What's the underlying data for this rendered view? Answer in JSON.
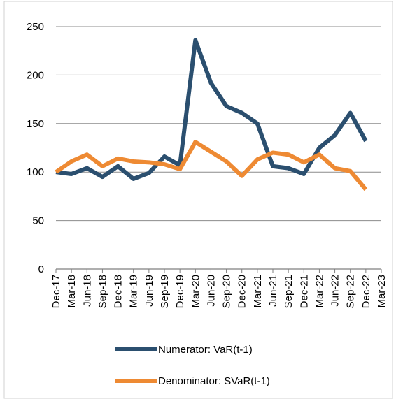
{
  "chart_data": {
    "type": "line",
    "categories": [
      "Dec-17",
      "Mar-18",
      "Jun-18",
      "Sep-18",
      "Dec-18",
      "Mar-19",
      "Jun-19",
      "Sep-19",
      "Dec-19",
      "Mar-20",
      "Jun-20",
      "Sep-20",
      "Dec-20",
      "Mar-21",
      "Jun-21",
      "Sep-21",
      "Dec-21",
      "Mar-22",
      "Jun-22",
      "Sep-22",
      "Dec-22",
      "Mar-23"
    ],
    "series": [
      {
        "name": "Numerator: VaR(t-1)",
        "color": "#2b4f6f",
        "values": [
          100,
          98,
          104,
          95,
          106,
          93,
          99,
          116,
          107,
          236,
          192,
          168,
          161,
          150,
          106,
          104,
          98,
          125,
          138,
          161,
          132,
          null
        ]
      },
      {
        "name": "Denominator: SVaR(t-1)",
        "color": "#ee8a33",
        "values": [
          100,
          111,
          118,
          106,
          114,
          111,
          110,
          108,
          103,
          131,
          121,
          111,
          96,
          113,
          120,
          118,
          110,
          118,
          104,
          101,
          82,
          null
        ]
      }
    ],
    "ylim": [
      0,
      250
    ],
    "yticks": [
      0,
      50,
      100,
      150,
      200,
      250
    ],
    "grid": true
  }
}
